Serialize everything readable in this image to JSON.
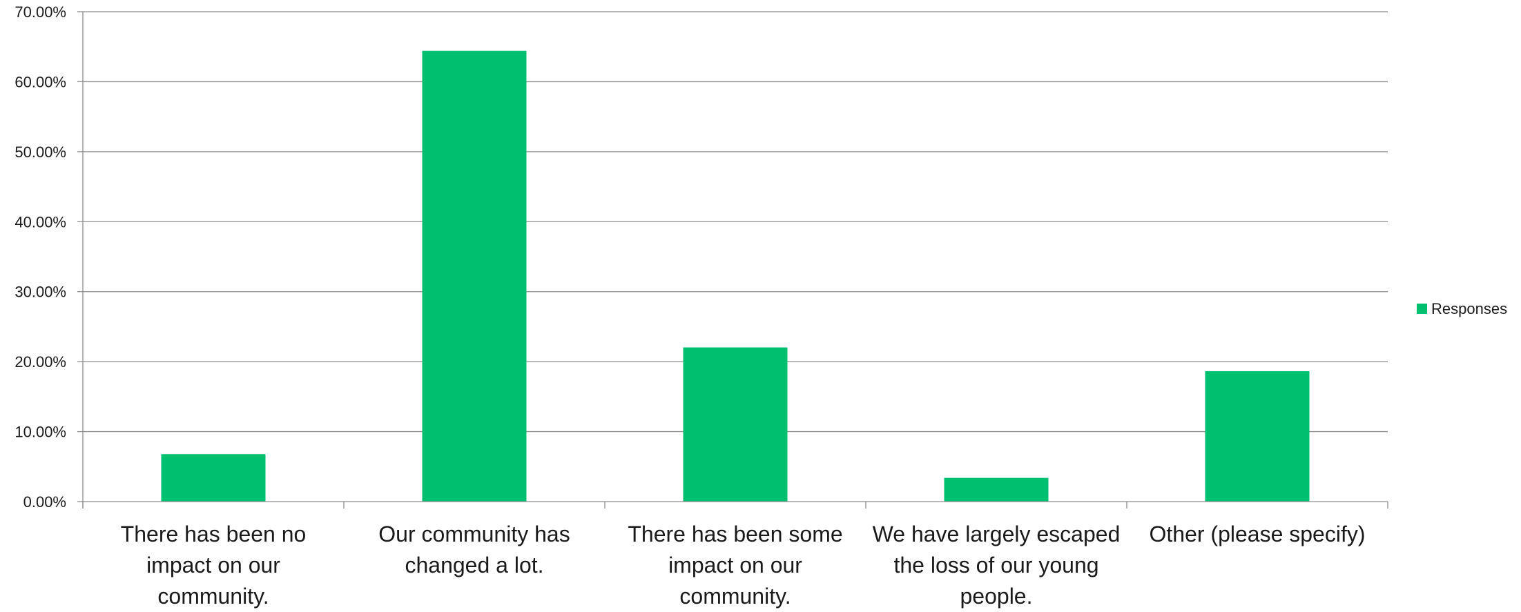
{
  "chart_data": {
    "type": "bar",
    "title": "",
    "xlabel": "",
    "ylabel": "",
    "categories": [
      [
        "There has been no",
        "impact on our",
        "community."
      ],
      [
        "Our community has",
        "changed a lot."
      ],
      [
        "There has been some",
        "impact on our",
        "community."
      ],
      [
        "We have largely escaped",
        "the loss of our young",
        "people."
      ],
      [
        "Other (please specify)"
      ]
    ],
    "series": [
      {
        "name": "Responses",
        "color": "#00BF6F",
        "values": [
          6.78,
          64.41,
          22.03,
          3.39,
          18.64
        ]
      }
    ],
    "ylim": [
      0,
      70
    ],
    "yticks": [
      0,
      10,
      20,
      30,
      40,
      50,
      60,
      70
    ],
    "ytick_labels": [
      "0.00%",
      "10.00%",
      "20.00%",
      "30.00%",
      "40.00%",
      "50.00%",
      "60.00%",
      "70.00%"
    ],
    "grid": true,
    "grid_color": "#8c8c8c",
    "axis_color": "#8c8c8c",
    "legend_position": "right"
  }
}
